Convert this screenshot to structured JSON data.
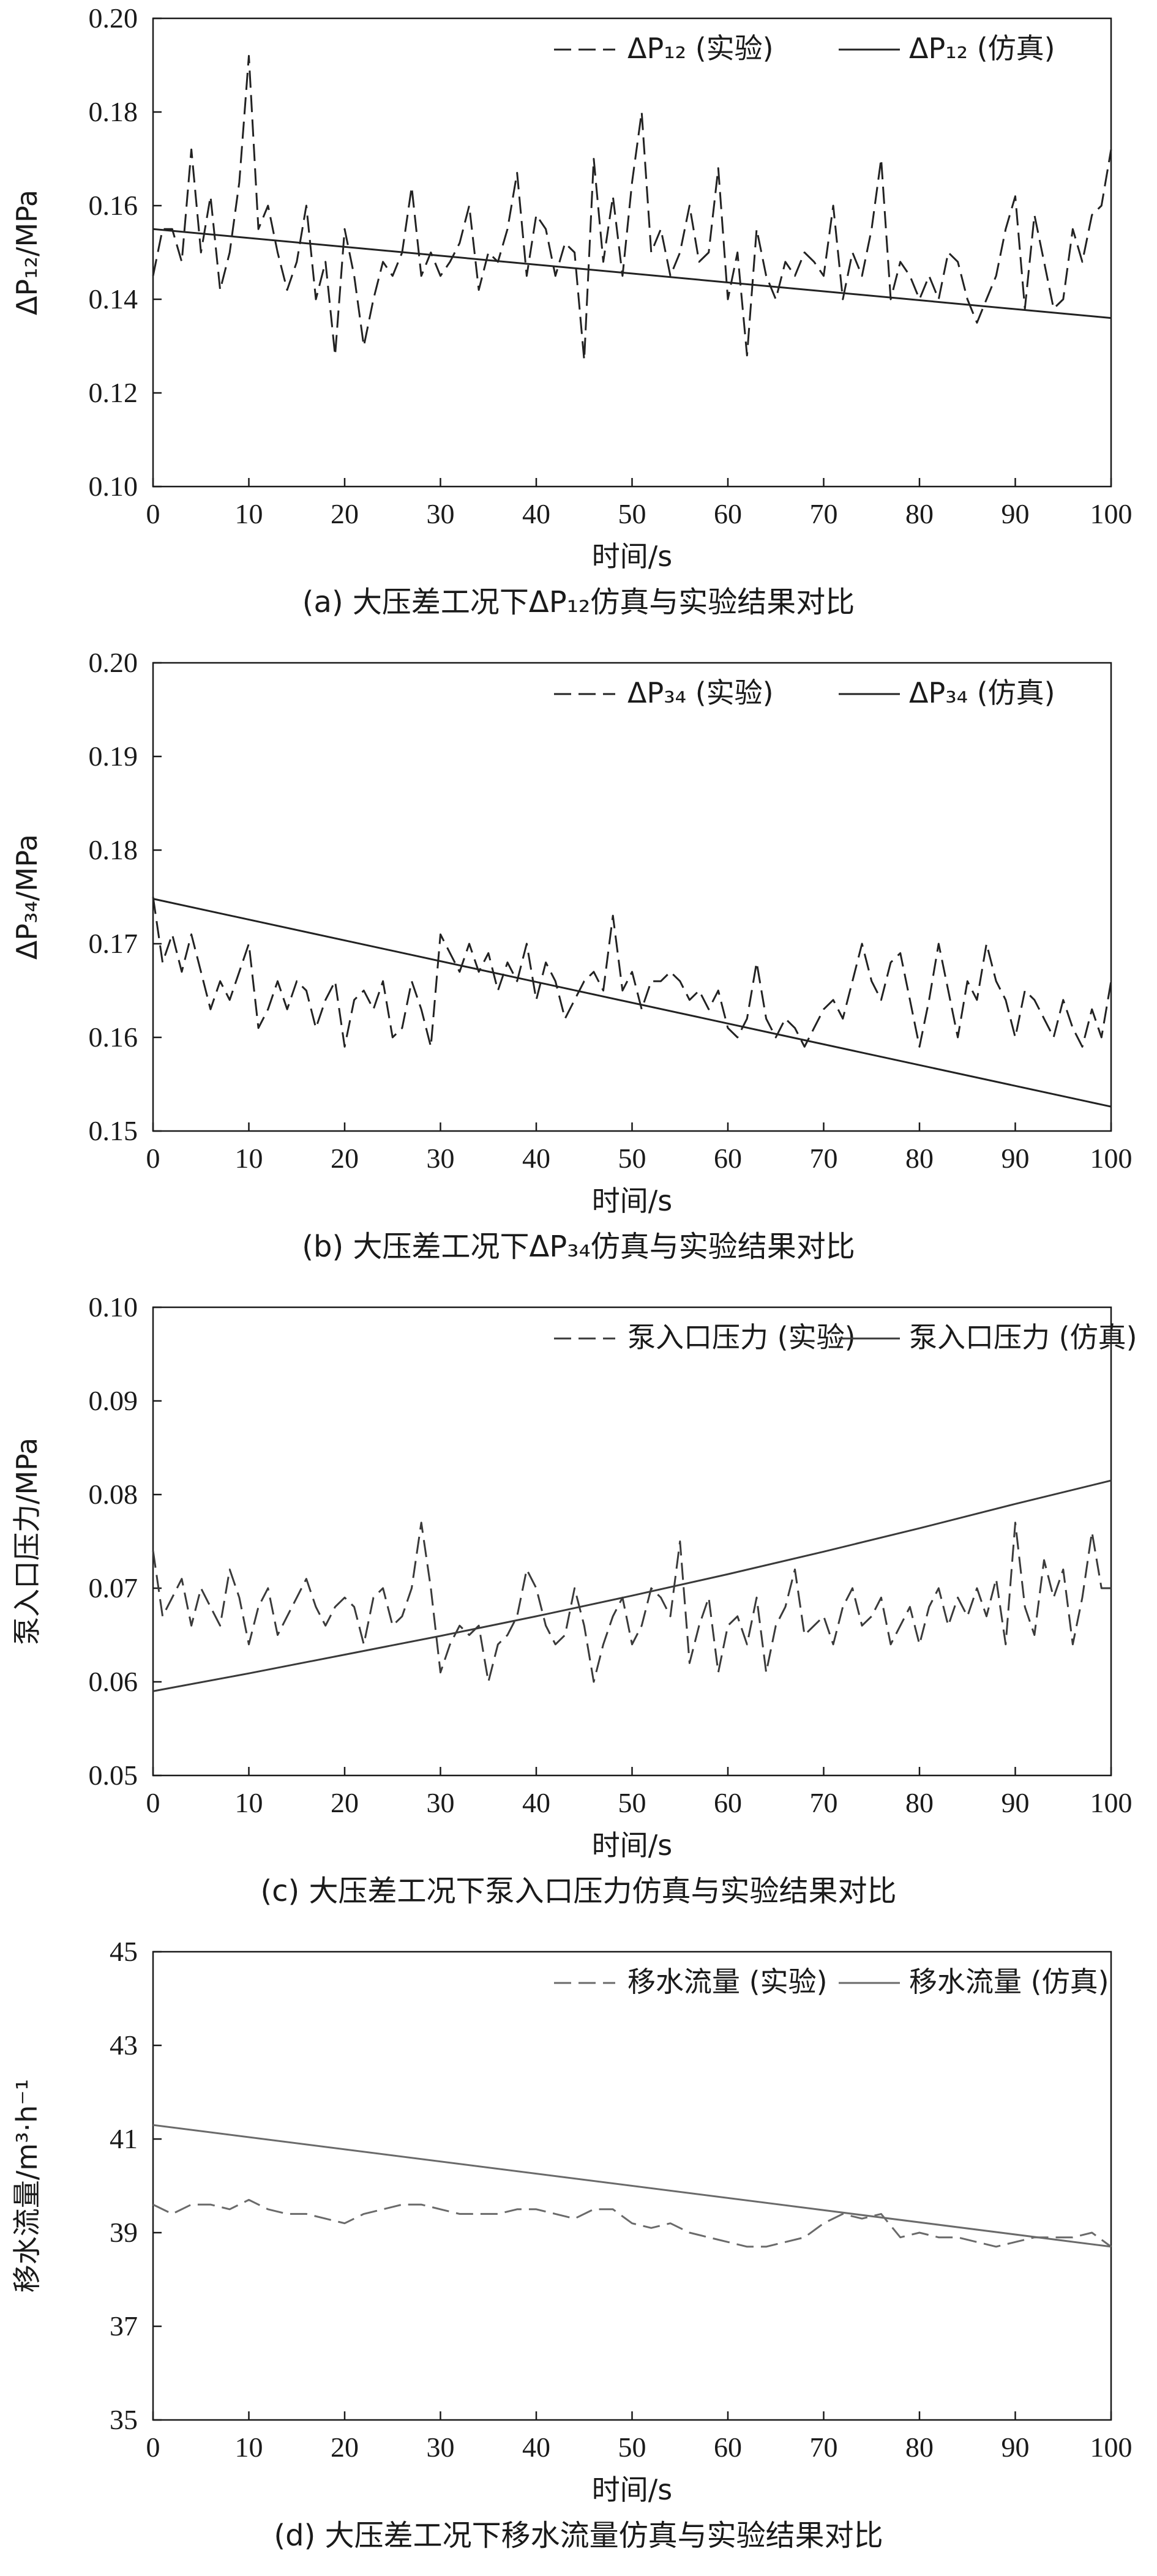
{
  "chart_data": [
    {
      "id": "a",
      "type": "line",
      "caption": "(a) 大压差工况下ΔP₁₂仿真与实验结果对比",
      "xlabel": "时间/s",
      "ylabel": "ΔP₁₂/MPa",
      "xlim": [
        0,
        100
      ],
      "ylim": [
        0.1,
        0.2
      ],
      "x_ticks": [
        "0",
        "10",
        "20",
        "30",
        "40",
        "50",
        "60",
        "70",
        "80",
        "90",
        "100"
      ],
      "y_ticks": [
        "0.10",
        "0.12",
        "0.14",
        "0.16",
        "0.18",
        "0.20"
      ],
      "legend_position": "top-right",
      "series": [
        {
          "name": "ΔP₁₂ (实验)",
          "style": "dashed",
          "color": "#222222",
          "x": [
            0,
            1,
            2,
            3,
            4,
            5,
            6,
            7,
            8,
            9,
            10,
            11,
            12,
            13,
            14,
            15,
            16,
            17,
            18,
            19,
            20,
            21,
            22,
            23,
            24,
            25,
            26,
            27,
            28,
            29,
            30,
            31,
            32,
            33,
            34,
            35,
            36,
            37,
            38,
            39,
            40,
            41,
            42,
            43,
            44,
            45,
            46,
            47,
            48,
            49,
            50,
            51,
            52,
            53,
            54,
            55,
            56,
            57,
            58,
            59,
            60,
            61,
            62,
            63,
            64,
            65,
            66,
            67,
            68,
            69,
            70,
            71,
            72,
            73,
            74,
            75,
            76,
            77,
            78,
            79,
            80,
            81,
            82,
            83,
            84,
            85,
            86,
            87,
            88,
            89,
            90,
            91,
            92,
            93,
            94,
            95,
            96,
            97,
            98,
            99,
            100
          ],
          "values": [
            0.145,
            0.155,
            0.155,
            0.148,
            0.172,
            0.15,
            0.162,
            0.142,
            0.15,
            0.165,
            0.192,
            0.155,
            0.16,
            0.15,
            0.142,
            0.148,
            0.16,
            0.14,
            0.148,
            0.128,
            0.155,
            0.145,
            0.13,
            0.14,
            0.148,
            0.145,
            0.15,
            0.164,
            0.145,
            0.15,
            0.145,
            0.148,
            0.152,
            0.16,
            0.142,
            0.15,
            0.148,
            0.155,
            0.167,
            0.145,
            0.158,
            0.155,
            0.145,
            0.152,
            0.15,
            0.127,
            0.17,
            0.148,
            0.162,
            0.145,
            0.165,
            0.18,
            0.15,
            0.155,
            0.145,
            0.15,
            0.16,
            0.148,
            0.15,
            0.168,
            0.14,
            0.15,
            0.128,
            0.155,
            0.145,
            0.14,
            0.148,
            0.145,
            0.15,
            0.148,
            0.145,
            0.16,
            0.14,
            0.15,
            0.145,
            0.155,
            0.17,
            0.14,
            0.148,
            0.145,
            0.14,
            0.145,
            0.14,
            0.15,
            0.148,
            0.14,
            0.135,
            0.14,
            0.145,
            0.155,
            0.162,
            0.138,
            0.158,
            0.148,
            0.138,
            0.14,
            0.155,
            0.148,
            0.158,
            0.16,
            0.172
          ]
        },
        {
          "name": "ΔP₁₂ (仿真)",
          "style": "solid",
          "color": "#222222",
          "x": [
            0,
            100
          ],
          "values": [
            0.155,
            0.136
          ]
        }
      ]
    },
    {
      "id": "b",
      "type": "line",
      "caption": "(b) 大压差工况下ΔP₃₄仿真与实验结果对比",
      "xlabel": "时间/s",
      "ylabel": "ΔP₃₄/MPa",
      "xlim": [
        0,
        100
      ],
      "ylim": [
        0.15,
        0.2
      ],
      "x_ticks": [
        "0",
        "10",
        "20",
        "30",
        "40",
        "50",
        "60",
        "70",
        "80",
        "90",
        "100"
      ],
      "y_ticks": [
        "0.15",
        "0.16",
        "0.17",
        "0.18",
        "0.19",
        "0.20"
      ],
      "legend_position": "top-right",
      "series": [
        {
          "name": "ΔP₃₄ (实验)",
          "style": "dashed",
          "color": "#222222",
          "x": [
            0,
            1,
            2,
            3,
            4,
            5,
            6,
            7,
            8,
            9,
            10,
            11,
            12,
            13,
            14,
            15,
            16,
            17,
            18,
            19,
            20,
            21,
            22,
            23,
            24,
            25,
            26,
            27,
            28,
            29,
            30,
            31,
            32,
            33,
            34,
            35,
            36,
            37,
            38,
            39,
            40,
            41,
            42,
            43,
            44,
            45,
            46,
            47,
            48,
            49,
            50,
            51,
            52,
            53,
            54,
            55,
            56,
            57,
            58,
            59,
            60,
            61,
            62,
            63,
            64,
            65,
            66,
            67,
            68,
            69,
            70,
            71,
            72,
            73,
            74,
            75,
            76,
            77,
            78,
            79,
            80,
            81,
            82,
            83,
            84,
            85,
            86,
            87,
            88,
            89,
            90,
            91,
            92,
            93,
            94,
            95,
            96,
            97,
            98,
            99,
            100
          ],
          "values": [
            0.175,
            0.168,
            0.171,
            0.167,
            0.171,
            0.167,
            0.163,
            0.166,
            0.164,
            0.167,
            0.17,
            0.161,
            0.163,
            0.166,
            0.163,
            0.166,
            0.165,
            0.161,
            0.164,
            0.166,
            0.159,
            0.164,
            0.165,
            0.163,
            0.166,
            0.16,
            0.161,
            0.166,
            0.163,
            0.159,
            0.171,
            0.169,
            0.167,
            0.17,
            0.167,
            0.169,
            0.165,
            0.168,
            0.166,
            0.17,
            0.164,
            0.168,
            0.166,
            0.162,
            0.164,
            0.166,
            0.167,
            0.165,
            0.173,
            0.165,
            0.167,
            0.163,
            0.166,
            0.166,
            0.167,
            0.166,
            0.164,
            0.165,
            0.163,
            0.165,
            0.161,
            0.16,
            0.162,
            0.168,
            0.162,
            0.16,
            0.162,
            0.161,
            0.159,
            0.161,
            0.163,
            0.164,
            0.162,
            0.166,
            0.17,
            0.166,
            0.164,
            0.168,
            0.169,
            0.164,
            0.159,
            0.164,
            0.17,
            0.165,
            0.16,
            0.166,
            0.164,
            0.17,
            0.166,
            0.164,
            0.16,
            0.165,
            0.164,
            0.162,
            0.16,
            0.164,
            0.161,
            0.159,
            0.163,
            0.16,
            0.166
          ]
        },
        {
          "name": "ΔP₃₄ (仿真)",
          "style": "solid",
          "color": "#222222",
          "x": [
            0,
            100
          ],
          "values": [
            0.1748,
            0.1526
          ]
        }
      ]
    },
    {
      "id": "c",
      "type": "line",
      "caption": "(c) 大压差工况下泵入口压力仿真与实验结果对比",
      "xlabel": "时间/s",
      "ylabel": "泵入口压力/MPa",
      "xlim": [
        0,
        100
      ],
      "ylim": [
        0.05,
        0.1
      ],
      "x_ticks": [
        "0",
        "10",
        "20",
        "30",
        "40",
        "50",
        "60",
        "70",
        "80",
        "90",
        "100"
      ],
      "y_ticks": [
        "0.05",
        "0.06",
        "0.07",
        "0.08",
        "0.09",
        "0.10"
      ],
      "legend_position": "top-right",
      "series": [
        {
          "name": "泵入口压力 (实验)",
          "style": "dashed",
          "color": "#3a3a3a",
          "x": [
            0,
            1,
            2,
            3,
            4,
            5,
            6,
            7,
            8,
            9,
            10,
            11,
            12,
            13,
            14,
            15,
            16,
            17,
            18,
            19,
            20,
            21,
            22,
            23,
            24,
            25,
            26,
            27,
            28,
            29,
            30,
            31,
            32,
            33,
            34,
            35,
            36,
            37,
            38,
            39,
            40,
            41,
            42,
            43,
            44,
            45,
            46,
            47,
            48,
            49,
            50,
            51,
            52,
            53,
            54,
            55,
            56,
            57,
            58,
            59,
            60,
            61,
            62,
            63,
            64,
            65,
            66,
            67,
            68,
            69,
            70,
            71,
            72,
            73,
            74,
            75,
            76,
            77,
            78,
            79,
            80,
            81,
            82,
            83,
            84,
            85,
            86,
            87,
            88,
            89,
            90,
            91,
            92,
            93,
            94,
            95,
            96,
            97,
            98,
            99,
            100
          ],
          "values": [
            0.074,
            0.067,
            0.069,
            0.071,
            0.066,
            0.07,
            0.068,
            0.066,
            0.072,
            0.069,
            0.064,
            0.068,
            0.07,
            0.065,
            0.067,
            0.069,
            0.071,
            0.068,
            0.066,
            0.068,
            0.069,
            0.068,
            0.064,
            0.069,
            0.07,
            0.066,
            0.067,
            0.07,
            0.077,
            0.07,
            0.061,
            0.064,
            0.066,
            0.065,
            0.066,
            0.06,
            0.064,
            0.065,
            0.067,
            0.072,
            0.07,
            0.066,
            0.064,
            0.065,
            0.07,
            0.066,
            0.06,
            0.064,
            0.067,
            0.069,
            0.064,
            0.066,
            0.07,
            0.069,
            0.067,
            0.075,
            0.062,
            0.066,
            0.069,
            0.061,
            0.066,
            0.067,
            0.064,
            0.069,
            0.061,
            0.066,
            0.068,
            0.072,
            0.065,
            0.066,
            0.067,
            0.064,
            0.068,
            0.07,
            0.066,
            0.067,
            0.069,
            0.064,
            0.066,
            0.068,
            0.064,
            0.068,
            0.07,
            0.066,
            0.069,
            0.067,
            0.07,
            0.067,
            0.071,
            0.064,
            0.077,
            0.068,
            0.065,
            0.073,
            0.069,
            0.072,
            0.064,
            0.069,
            0.076,
            0.07,
            0.07
          ]
        },
        {
          "name": "泵入口压力 (仿真)",
          "style": "solid",
          "color": "#3a3a3a",
          "x": [
            0,
            10,
            20,
            30,
            40,
            50,
            60,
            70,
            80,
            90,
            100
          ],
          "values": [
            0.059,
            0.0609,
            0.0629,
            0.0649,
            0.067,
            0.0692,
            0.0715,
            0.0739,
            0.0764,
            0.079,
            0.0815
          ]
        }
      ]
    },
    {
      "id": "d",
      "type": "line",
      "caption": "(d) 大压差工况下移水流量仿真与实验结果对比",
      "xlabel": "时间/s",
      "ylabel": "移水流量/m³·h⁻¹",
      "xlim": [
        0,
        100
      ],
      "ylim": [
        35,
        45
      ],
      "x_ticks": [
        "0",
        "10",
        "20",
        "30",
        "40",
        "50",
        "60",
        "70",
        "80",
        "90",
        "100"
      ],
      "y_ticks": [
        "35",
        "37",
        "39",
        "41",
        "43",
        "45"
      ],
      "legend_position": "top-right",
      "series": [
        {
          "name": "移水流量 (实验)",
          "style": "dashed",
          "color": "#6a6a6a",
          "x": [
            0,
            2,
            4,
            6,
            8,
            10,
            12,
            14,
            16,
            18,
            20,
            22,
            24,
            26,
            28,
            30,
            32,
            34,
            36,
            38,
            40,
            42,
            44,
            46,
            48,
            50,
            52,
            54,
            56,
            58,
            60,
            62,
            64,
            66,
            68,
            70,
            72,
            74,
            76,
            78,
            80,
            82,
            84,
            86,
            88,
            90,
            92,
            94,
            96,
            98,
            100
          ],
          "values": [
            39.6,
            39.4,
            39.6,
            39.6,
            39.5,
            39.7,
            39.5,
            39.4,
            39.4,
            39.3,
            39.2,
            39.4,
            39.5,
            39.6,
            39.6,
            39.5,
            39.4,
            39.4,
            39.4,
            39.5,
            39.5,
            39.4,
            39.3,
            39.5,
            39.5,
            39.2,
            39.1,
            39.2,
            39.0,
            38.9,
            38.8,
            38.7,
            38.7,
            38.8,
            38.9,
            39.2,
            39.4,
            39.3,
            39.4,
            38.9,
            39.0,
            38.9,
            38.9,
            38.8,
            38.7,
            38.8,
            38.9,
            38.9,
            38.9,
            39.0,
            38.7
          ]
        },
        {
          "name": "移水流量 (仿真)",
          "style": "solid",
          "color": "#6a6a6a",
          "x": [
            0,
            100
          ],
          "values": [
            41.3,
            38.7
          ]
        }
      ]
    }
  ]
}
